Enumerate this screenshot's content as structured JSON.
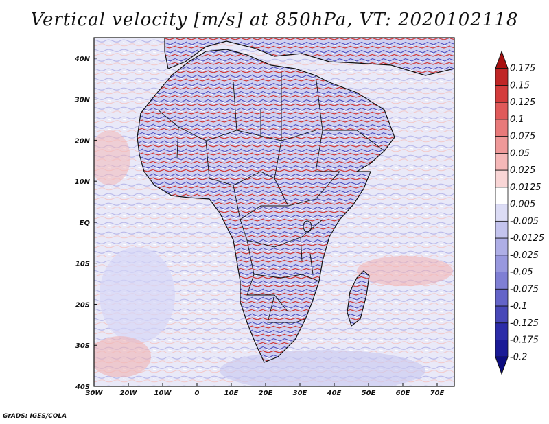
{
  "title": "Vertical velocity [m/s] at 850hPa, VT: 2020102118",
  "map": {
    "variable": "Vertical velocity",
    "units": "m/s",
    "level": "850hPa",
    "valid_time": "2020102118",
    "lon_range": [
      -30,
      75
    ],
    "lat_range": [
      -40,
      45
    ],
    "lat_ticks": [
      "40N",
      "30N",
      "20N",
      "10N",
      "EQ",
      "10S",
      "20S",
      "30S",
      "40S"
    ],
    "lat_tick_values": [
      40,
      30,
      20,
      10,
      0,
      -10,
      -20,
      -30,
      -40
    ],
    "lon_ticks": [
      "30W",
      "20W",
      "10W",
      "0",
      "10E",
      "20E",
      "30E",
      "40E",
      "50E",
      "60E",
      "70E"
    ],
    "lon_tick_values": [
      -30,
      -20,
      -10,
      0,
      10,
      20,
      30,
      40,
      50,
      60,
      70
    ]
  },
  "colorbar": {
    "labels": [
      "0.175",
      "0.15",
      "0.125",
      "0.1",
      "0.075",
      "0.05",
      "0.025",
      "0.0125",
      "0.005",
      "-0.005",
      "-0.0125",
      "-0.025",
      "-0.05",
      "-0.075",
      "-0.1",
      "-0.125",
      "-0.175",
      "-0.2"
    ],
    "colors": [
      "#a81010",
      "#c02626",
      "#d43c3c",
      "#e05a5a",
      "#e87a7a",
      "#ef9999",
      "#f5b8b8",
      "#f9d6d6",
      "#ffffff",
      "#dcdcf5",
      "#c4c4ee",
      "#aeaee6",
      "#9898de",
      "#7f7fd4",
      "#6464c8",
      "#4848b8",
      "#2c2ca8",
      "#1a1a96",
      "#0c0c80"
    ]
  },
  "credit": "GrADS: IGES/COLA"
}
